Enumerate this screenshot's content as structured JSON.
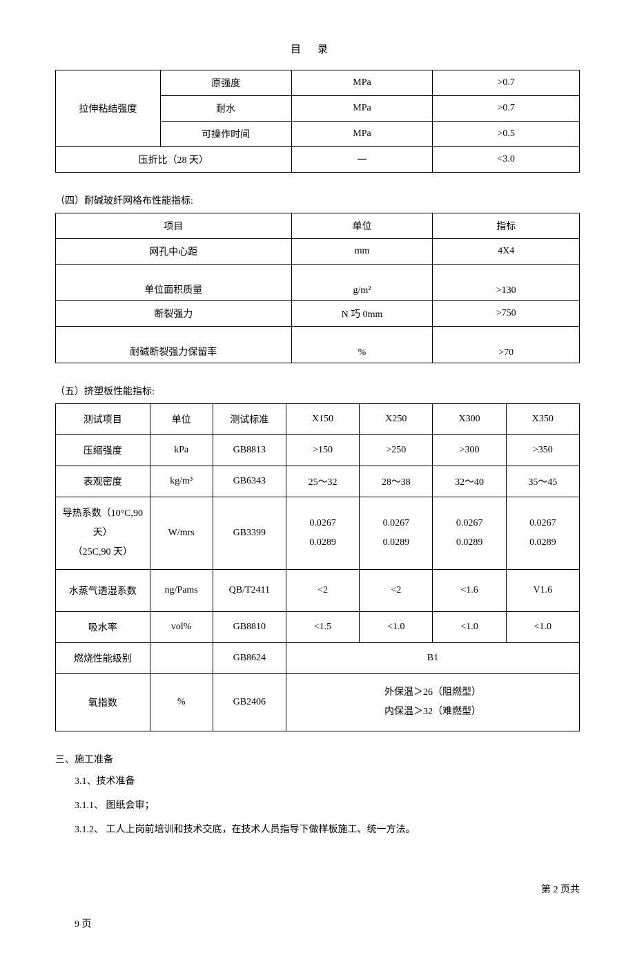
{
  "title": "目录",
  "table1": {
    "rowspan_label": "拉伸粘结强度",
    "rows_a": [
      [
        "原强度",
        "MPa",
        ">0.7"
      ],
      [
        "耐水",
        "MPa",
        ">0.7"
      ],
      [
        "可操作时间",
        "MPa",
        ">0.5"
      ]
    ],
    "row_b": [
      "压折比（28 天）",
      "一",
      "<3.0"
    ]
  },
  "section4_heading": "（四）耐碱玻纤网格布性能指标:",
  "table2": {
    "header": [
      "项目",
      "单位",
      "指标"
    ],
    "rows": [
      [
        "网孔中心距",
        "mm",
        "4X4"
      ],
      [
        "单位面积质量",
        "g/m²",
        ">130"
      ],
      [
        "断裂强力",
        "N 巧 0mm",
        ">750"
      ],
      [
        "耐碱断裂强力保留率",
        "%",
        ">70"
      ]
    ]
  },
  "section5_heading": "（五）挤塑板性能指标:",
  "table3": {
    "header": [
      "测试项目",
      "单位",
      "测试标准",
      "X150",
      "X250",
      "X300",
      "X350"
    ],
    "rows": [
      [
        "压缩强度",
        "kPa",
        "GB8813",
        ">150",
        ">250",
        ">300",
        ">350"
      ],
      [
        "表观密度",
        "kg/m³",
        "GB6343",
        "25〜32",
        "28〜38",
        "32〜40",
        "35〜45"
      ]
    ],
    "row_thermal": {
      "label": "导热系数（10°C,90\n天）\n（25C,90 天）",
      "unit": "W/mrs",
      "std": "GB3399",
      "vals": [
        "0.0267\n0.0289",
        "0.0267\n0.0289",
        "0.0267\n0.0289",
        "0.0267\n0.0289"
      ]
    },
    "rows2": [
      [
        "水蒸气透湿系数",
        "ng/Pams",
        "QB/T2411",
        "<2",
        "<2",
        "<1.6",
        "V1.6"
      ],
      [
        "吸水率",
        "vol%",
        "GB8810",
        "<1.5",
        "<1.0",
        "<1.0",
        "<1.0"
      ]
    ],
    "row_fire": {
      "label": "燃烧性能级别",
      "unit": "",
      "std": "GB8624",
      "merged": "B1"
    },
    "row_oxy": {
      "label": "氧指数",
      "unit": "%",
      "std": "GB2406",
      "merged": "外保温＞26（阻燃型）\n内保温＞32（难燃型）"
    }
  },
  "section3_heading": "三、施工准备",
  "p31": "3.1、技术准备",
  "p311": "3.1.1、 图纸会审；",
  "p312": "3.1.2、 工人上岗前培训和技术交底，在技术人员指导下做样板施工、统一方法。",
  "footer_right": "第 2 页共",
  "footer_left": "9 页"
}
